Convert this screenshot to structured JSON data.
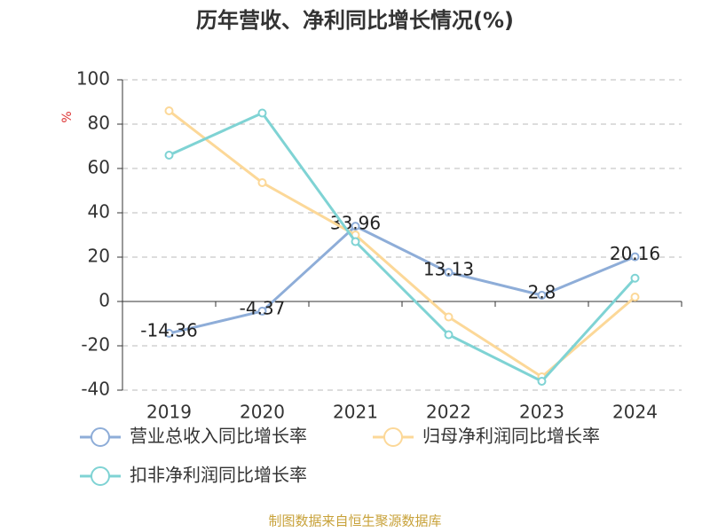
{
  "chart_data": {
    "type": "line",
    "title": "历年营收、净利同比增长情况(%)",
    "y_label": "%",
    "categories": [
      "2019",
      "2020",
      "2021",
      "2022",
      "2023",
      "2024"
    ],
    "series": [
      {
        "name": "营业总收入同比增长率",
        "color": "#8eadd8",
        "values": [
          -14.36,
          -4.37,
          33.96,
          13.13,
          2.8,
          20.16
        ],
        "show_labels": true
      },
      {
        "name": "归母净利润同比增长率",
        "color": "#fcd898",
        "values": [
          86,
          53.6,
          30,
          -7,
          -34,
          2
        ],
        "show_labels": false
      },
      {
        "name": "扣非净利润同比增长率",
        "color": "#7fd3d4",
        "values": [
          66,
          85,
          27,
          -15,
          -36,
          10.5
        ],
        "show_labels": false
      }
    ],
    "ylim": [
      -40,
      100
    ],
    "yticks": [
      -40,
      -20,
      0,
      20,
      40,
      60,
      80,
      100
    ],
    "grid": true,
    "source": "制图数据来自恒生聚源数据库"
  }
}
